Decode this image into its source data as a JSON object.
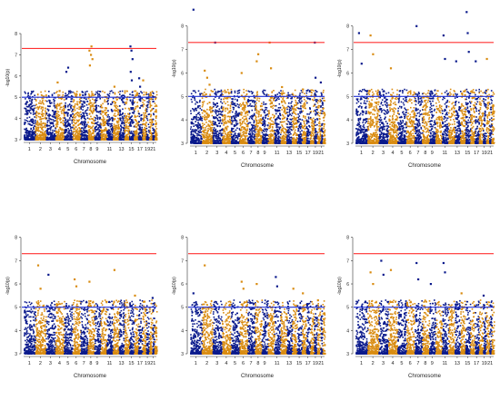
{
  "chart_data": [
    {
      "type": "scatter",
      "subtype": "manhattan",
      "xlabel": "Chromosome",
      "ylabel": "-log10(p)",
      "ylim": [
        3,
        8.3
      ],
      "yticks": [
        3,
        4,
        5,
        6,
        7,
        8
      ],
      "chromosome_tick_labels": [
        "1",
        "2",
        "3",
        "4",
        "5",
        "6",
        "7",
        "8",
        "9",
        "11",
        "13",
        "15",
        "17",
        "19",
        "21"
      ],
      "thresholds": {
        "genome_wide": 7.3,
        "suggestive": 5.0
      },
      "colors": {
        "odd": "#0a1a8c",
        "even": "#d98c12",
        "genome_wide_line": "#ff3030",
        "suggestive_line": "#1f2fd6"
      },
      "peaks": [
        {
          "chr": 4,
          "values": [
            5.7,
            5.3
          ]
        },
        {
          "chr": 5,
          "values": [
            6.2,
            6.4
          ]
        },
        {
          "chr": 8,
          "values": [
            7.2,
            7.0,
            6.8,
            6.5,
            7.4
          ]
        },
        {
          "chr": 12,
          "values": [
            5.5
          ]
        },
        {
          "chr": 15,
          "values": [
            7.4,
            7.2,
            6.8,
            6.2,
            5.8
          ]
        },
        {
          "chr": 17,
          "values": [
            5.9,
            5.5
          ]
        },
        {
          "chr": 18,
          "values": [
            5.8
          ]
        }
      ]
    },
    {
      "type": "scatter",
      "subtype": "manhattan",
      "xlabel": "Chromosome",
      "ylabel": "-log10(p)",
      "ylim": [
        3,
        8.8
      ],
      "yticks": [
        3,
        4,
        5,
        6,
        7,
        8
      ],
      "chromosome_tick_labels": [
        "1",
        "2",
        "3",
        "4",
        "5",
        "6",
        "7",
        "8",
        "9",
        "11",
        "13",
        "15",
        "17",
        "19",
        "21"
      ],
      "thresholds": {
        "genome_wide": 7.3,
        "suggestive": 5.0
      },
      "colors": {
        "odd": "#0a1a8c",
        "even": "#d98c12",
        "genome_wide_line": "#ff3030",
        "suggestive_line": "#1f2fd6"
      },
      "peaks": [
        {
          "chr": 1,
          "values": [
            8.7
          ]
        },
        {
          "chr": 2,
          "values": [
            6.1,
            5.8,
            5.5
          ]
        },
        {
          "chr": 3,
          "values": [
            7.3
          ]
        },
        {
          "chr": 6,
          "values": [
            6.0
          ]
        },
        {
          "chr": 8,
          "values": [
            6.5,
            6.8
          ]
        },
        {
          "chr": 10,
          "values": [
            7.3,
            6.2
          ]
        },
        {
          "chr": 12,
          "values": [
            5.4
          ]
        },
        {
          "chr": 16,
          "values": [
            5.3
          ]
        },
        {
          "chr": 19,
          "values": [
            7.3,
            5.8
          ]
        },
        {
          "chr": 21,
          "values": [
            5.6
          ]
        }
      ]
    },
    {
      "type": "scatter",
      "subtype": "manhattan",
      "xlabel": "Chromosome",
      "ylabel": "-log10(p)",
      "ylim": [
        3,
        8.8
      ],
      "yticks": [
        3,
        4,
        5,
        6,
        7,
        8
      ],
      "chromosome_tick_labels": [
        "1",
        "2",
        "3",
        "4",
        "5",
        "6",
        "7",
        "8",
        "9",
        "11",
        "13",
        "15",
        "17",
        "19",
        "21"
      ],
      "thresholds": {
        "genome_wide": 7.3,
        "suggestive": 5.0
      },
      "colors": {
        "odd": "#0a1a8c",
        "even": "#d98c12",
        "genome_wide_line": "#ff3030",
        "suggestive_line": "#1f2fd6"
      },
      "peaks": [
        {
          "chr": 1,
          "values": [
            7.7,
            6.4
          ]
        },
        {
          "chr": 2,
          "values": [
            7.6,
            6.8
          ]
        },
        {
          "chr": 4,
          "values": [
            6.2
          ]
        },
        {
          "chr": 7,
          "values": [
            8.0
          ]
        },
        {
          "chr": 11,
          "values": [
            7.6,
            6.6
          ]
        },
        {
          "chr": 13,
          "values": [
            6.5
          ]
        },
        {
          "chr": 15,
          "values": [
            8.6,
            7.7,
            6.9
          ]
        },
        {
          "chr": 17,
          "values": [
            6.5
          ]
        },
        {
          "chr": 20,
          "values": [
            6.6
          ]
        }
      ]
    },
    {
      "type": "scatter",
      "subtype": "manhattan",
      "xlabel": "Chromosome",
      "ylabel": "-log10(p)",
      "ylim": [
        3,
        8.3
      ],
      "yticks": [
        3,
        4,
        5,
        6,
        7,
        8
      ],
      "chromosome_tick_labels": [
        "1",
        "2",
        "3",
        "4",
        "5",
        "6",
        "7",
        "8",
        "9",
        "11",
        "13",
        "15",
        "17",
        "19",
        "21"
      ],
      "thresholds": {
        "genome_wide": 7.3,
        "suggestive": 5.0
      },
      "colors": {
        "odd": "#0a1a8c",
        "even": "#d98c12",
        "genome_wide_line": "#ff3030",
        "suggestive_line": "#1f2fd6"
      },
      "peaks": [
        {
          "chr": 2,
          "values": [
            6.8,
            5.8
          ]
        },
        {
          "chr": 3,
          "values": [
            6.4
          ]
        },
        {
          "chr": 6,
          "values": [
            6.2,
            5.9
          ]
        },
        {
          "chr": 8,
          "values": [
            6.1
          ]
        },
        {
          "chr": 12,
          "values": [
            6.6
          ]
        },
        {
          "chr": 16,
          "values": [
            5.5
          ]
        },
        {
          "chr": 21,
          "values": [
            5.4
          ]
        }
      ]
    },
    {
      "type": "scatter",
      "subtype": "manhattan",
      "xlabel": "Chromosome",
      "ylabel": "-log10(p)",
      "ylim": [
        3,
        8.3
      ],
      "yticks": [
        3,
        4,
        5,
        6,
        7,
        8
      ],
      "chromosome_tick_labels": [
        "1",
        "2",
        "3",
        "4",
        "5",
        "6",
        "7",
        "8",
        "9",
        "11",
        "13",
        "15",
        "17",
        "19",
        "21"
      ],
      "thresholds": {
        "genome_wide": 7.3,
        "suggestive": 5.0
      },
      "colors": {
        "odd": "#0a1a8c",
        "even": "#d98c12",
        "genome_wide_line": "#ff3030",
        "suggestive_line": "#1f2fd6"
      },
      "peaks": [
        {
          "chr": 1,
          "values": [
            5.6
          ]
        },
        {
          "chr": 2,
          "values": [
            6.8
          ]
        },
        {
          "chr": 6,
          "values": [
            6.1,
            5.8
          ]
        },
        {
          "chr": 8,
          "values": [
            6.0
          ]
        },
        {
          "chr": 11,
          "values": [
            6.3,
            5.9
          ]
        },
        {
          "chr": 14,
          "values": [
            5.8
          ]
        },
        {
          "chr": 16,
          "values": [
            5.6
          ]
        },
        {
          "chr": 20,
          "values": [
            5.3
          ]
        }
      ]
    },
    {
      "type": "scatter",
      "subtype": "manhattan",
      "xlabel": "Chromosome",
      "ylabel": "-log10(p)",
      "ylim": [
        3,
        8.3
      ],
      "yticks": [
        3,
        4,
        5,
        6,
        7,
        8
      ],
      "chromosome_tick_labels": [
        "1",
        "2",
        "3",
        "4",
        "5",
        "6",
        "7",
        "8",
        "9",
        "11",
        "13",
        "15",
        "17",
        "19",
        "21"
      ],
      "thresholds": {
        "genome_wide": 7.3,
        "suggestive": 5.0
      },
      "colors": {
        "odd": "#0a1a8c",
        "even": "#d98c12",
        "genome_wide_line": "#ff3030",
        "suggestive_line": "#1f2fd6"
      },
      "peaks": [
        {
          "chr": 2,
          "values": [
            6.5,
            6.0
          ]
        },
        {
          "chr": 3,
          "values": [
            7.0,
            6.4
          ]
        },
        {
          "chr": 4,
          "values": [
            6.6
          ]
        },
        {
          "chr": 7,
          "values": [
            6.9,
            6.2
          ]
        },
        {
          "chr": 9,
          "values": [
            6.0
          ]
        },
        {
          "chr": 11,
          "values": [
            6.9,
            6.5
          ]
        },
        {
          "chr": 14,
          "values": [
            5.6
          ]
        },
        {
          "chr": 19,
          "values": [
            5.5
          ]
        }
      ]
    }
  ]
}
